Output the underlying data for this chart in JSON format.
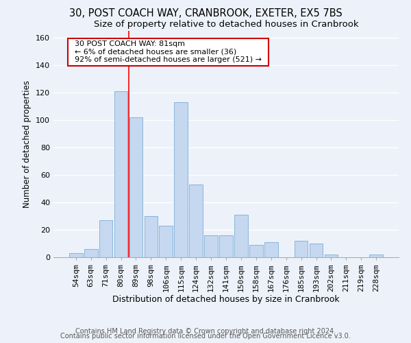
{
  "title1": "30, POST COACH WAY, CRANBROOK, EXETER, EX5 7BS",
  "title2": "Size of property relative to detached houses in Cranbrook",
  "xlabel": "Distribution of detached houses by size in Cranbrook",
  "ylabel": "Number of detached properties",
  "categories": [
    "54sqm",
    "63sqm",
    "71sqm",
    "80sqm",
    "89sqm",
    "98sqm",
    "106sqm",
    "115sqm",
    "124sqm",
    "132sqm",
    "141sqm",
    "150sqm",
    "158sqm",
    "167sqm",
    "176sqm",
    "185sqm",
    "193sqm",
    "202sqm",
    "211sqm",
    "219sqm",
    "228sqm"
  ],
  "values": [
    3,
    6,
    27,
    121,
    102,
    30,
    23,
    113,
    53,
    16,
    16,
    31,
    9,
    11,
    0,
    12,
    10,
    2,
    0,
    0,
    2
  ],
  "bar_color": "#c5d8f0",
  "bar_edge_color": "#7aadd4",
  "red_line_x": 3.5,
  "annotation_text": "  30 POST COACH WAY: 81sqm  \n  ← 6% of detached houses are smaller (36)  \n  92% of semi-detached houses are larger (521) →  ",
  "annotation_box_color": "#ffffff",
  "annotation_box_edge_color": "#cc0000",
  "footer1": "Contains HM Land Registry data © Crown copyright and database right 2024.",
  "footer2": "Contains public sector information licensed under the Open Government Licence v3.0.",
  "ylim": [
    0,
    165
  ],
  "yticks": [
    0,
    20,
    40,
    60,
    80,
    100,
    120,
    140,
    160
  ],
  "title1_fontsize": 10.5,
  "title2_fontsize": 9.5,
  "xlabel_fontsize": 9,
  "ylabel_fontsize": 8.5,
  "tick_fontsize": 8,
  "annotation_fontsize": 8,
  "footer_fontsize": 7,
  "bg_color": "#edf2fa"
}
